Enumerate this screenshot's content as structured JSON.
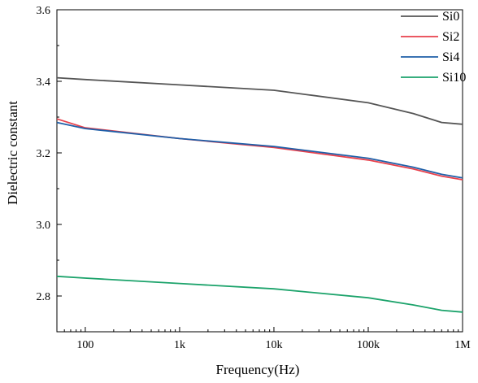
{
  "chart_data": {
    "type": "line",
    "xscale": "log",
    "xlabel": "Frequency(Hz)",
    "ylabel": "Dielectric constant",
    "xlim": [
      50,
      1000000
    ],
    "ylim": [
      2.7,
      3.6
    ],
    "xticks": [
      100,
      1000,
      10000,
      100000,
      1000000
    ],
    "xtick_labels": [
      "100",
      "1k",
      "10k",
      "100k",
      "1M"
    ],
    "yticks": [
      2.8,
      3.0,
      3.2,
      3.4,
      3.6
    ],
    "ytick_labels": [
      "2.8",
      "3.0",
      "3.2",
      "3.4",
      "3.6"
    ],
    "legend_position": "top-right",
    "grid": false,
    "series": [
      {
        "name": "Si0",
        "color": "#555555",
        "x": [
          50,
          100,
          1000,
          10000,
          100000,
          300000,
          600000,
          1000000
        ],
        "y": [
          3.41,
          3.405,
          3.39,
          3.375,
          3.34,
          3.31,
          3.285,
          3.28
        ]
      },
      {
        "name": "Si2",
        "color": "#e8414c",
        "x": [
          50,
          100,
          1000,
          10000,
          100000,
          300000,
          600000,
          1000000
        ],
        "y": [
          3.295,
          3.27,
          3.24,
          3.215,
          3.18,
          3.155,
          3.135,
          3.125
        ]
      },
      {
        "name": "Si4",
        "color": "#1f5fa8",
        "x": [
          50,
          100,
          1000,
          10000,
          100000,
          300000,
          600000,
          1000000
        ],
        "y": [
          3.285,
          3.268,
          3.24,
          3.218,
          3.185,
          3.16,
          3.14,
          3.13
        ]
      },
      {
        "name": "Si10",
        "color": "#1ca36b",
        "x": [
          50,
          100,
          1000,
          10000,
          100000,
          300000,
          600000,
          1000000
        ],
        "y": [
          2.855,
          2.85,
          2.835,
          2.82,
          2.795,
          2.775,
          2.76,
          2.755
        ]
      }
    ]
  }
}
